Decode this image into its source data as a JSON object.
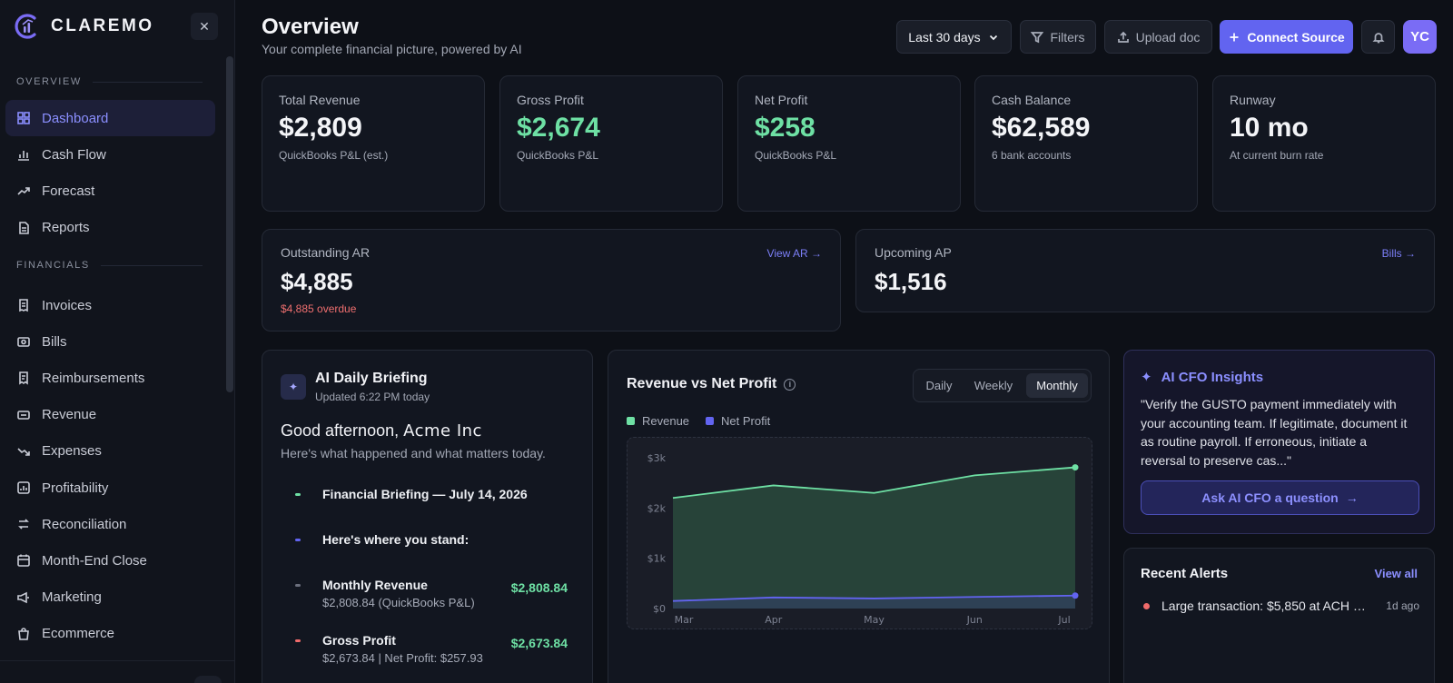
{
  "brand": {
    "name": "CLAREMO"
  },
  "sidebar": {
    "sections": [
      {
        "title": "OVERVIEW",
        "items": [
          {
            "label": "Dashboard",
            "icon": "grid-icon",
            "active": true
          },
          {
            "label": "Cash Flow",
            "icon": "bar-chart-icon"
          },
          {
            "label": "Forecast",
            "icon": "trending-up-icon"
          },
          {
            "label": "Reports",
            "icon": "document-icon"
          }
        ]
      },
      {
        "title": "FINANCIALS",
        "items": [
          {
            "label": "Invoices",
            "icon": "invoice-icon"
          },
          {
            "label": "Bills",
            "icon": "bill-icon"
          },
          {
            "label": "Reimbursements",
            "icon": "receipt-icon"
          },
          {
            "label": "Revenue",
            "icon": "revenue-icon"
          },
          {
            "label": "Expenses",
            "icon": "trending-down-icon"
          },
          {
            "label": "Profitability",
            "icon": "profit-chart-icon"
          },
          {
            "label": "Reconciliation",
            "icon": "swap-icon"
          },
          {
            "label": "Month-End Close",
            "icon": "calendar-icon"
          },
          {
            "label": "Marketing",
            "icon": "megaphone-icon"
          },
          {
            "label": "Ecommerce",
            "icon": "bag-icon"
          }
        ]
      }
    ]
  },
  "header": {
    "title": "Overview",
    "subtitle": "Your complete financial picture, powered by AI",
    "period": "Last 30 days",
    "filters": "Filters",
    "upload": "Upload doc",
    "connect": "Connect Source",
    "avatar": "YC"
  },
  "kpis": [
    {
      "label": "Total Revenue",
      "value": "$2,809",
      "note": "QuickBooks P&L (est.)",
      "green": false
    },
    {
      "label": "Gross Profit",
      "value": "$2,674",
      "note": "QuickBooks P&L",
      "green": true
    },
    {
      "label": "Net Profit",
      "value": "$258",
      "note": "QuickBooks P&L",
      "green": true
    },
    {
      "label": "Cash Balance",
      "value": "$62,589",
      "note": "6 bank accounts",
      "green": false
    },
    {
      "label": "Runway",
      "value": "10 mo",
      "note": "At current burn rate",
      "green": false
    }
  ],
  "ar": {
    "label": "Outstanding AR",
    "value": "$4,885",
    "overdue": "$4,885 overdue",
    "link": "View AR →"
  },
  "ap": {
    "label": "Upcoming AP",
    "value": "$1,516",
    "link": "Bills →"
  },
  "briefing": {
    "title": "AI Daily Briefing",
    "updated": "Updated 6:22 PM today",
    "greeting": "Good afternoon, ",
    "company": "Acme Inc",
    "greeting_sub": "Here's what happened and what matters today.",
    "rows": [
      {
        "title": "Financial Briefing — July 14, 2026",
        "sub": "",
        "amount": "",
        "color": "#6ee0a4"
      },
      {
        "title": "Here's where you stand:",
        "sub": "",
        "amount": "",
        "color": "#6264f0"
      },
      {
        "title": "Monthly Revenue",
        "sub": "$2,808.84 (QuickBooks P&L)",
        "amount": "$2,808.84",
        "color": "#6b6f7d"
      },
      {
        "title": "Gross Profit",
        "sub": "$2,673.84 | Net Profit: $257.93",
        "amount": "$2,673.84",
        "color": "#f06b6b"
      }
    ]
  },
  "chart": {
    "title": "Revenue vs Net Profit",
    "tabs": [
      "Daily",
      "Weekly",
      "Monthly"
    ],
    "active_tab": "Monthly",
    "colors": {
      "revenue": "#6ee0a4",
      "net_profit": "#6264f0"
    }
  },
  "chart_data": {
    "type": "area",
    "x": [
      "Mar",
      "Apr",
      "May",
      "Jun",
      "Jul"
    ],
    "series": [
      {
        "name": "Revenue",
        "values": [
          2200,
          2450,
          2300,
          2650,
          2809
        ]
      },
      {
        "name": "Net Profit",
        "values": [
          150,
          220,
          200,
          230,
          258
        ]
      }
    ],
    "yticks": [
      "$0",
      "$1k",
      "$2k",
      "$3k"
    ],
    "ylim": [
      0,
      3000
    ],
    "grid": false,
    "legend": "top-left"
  },
  "cfo": {
    "title": "AI CFO Insights",
    "quote": "\"Verify the GUSTO payment immediately with your accounting team. If legitimate, document it as routine payroll. If erroneous, initiate a reversal to preserve cas...\"",
    "button": "Ask AI CFO a question"
  },
  "alerts": {
    "title": "Recent Alerts",
    "link": "View all",
    "items": [
      {
        "text": "Large transaction: $5,850 at ACH Ele...",
        "time": "1d ago"
      }
    ]
  }
}
